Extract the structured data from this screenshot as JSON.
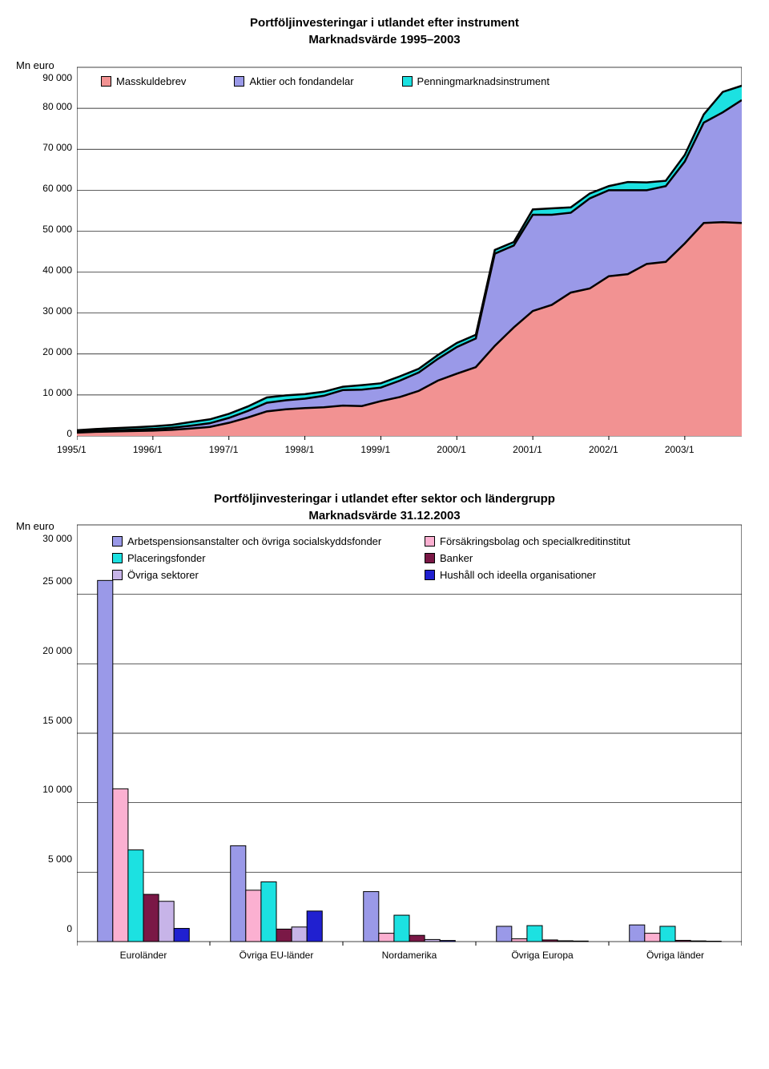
{
  "chart1": {
    "type": "area",
    "title_line1": "Portföljinvesteringar i utlandet  efter instrument",
    "title_line2": "Marknadsvärde 1995–2003",
    "y_axis_label": "Mn euro",
    "y_axis_fontsize": 13,
    "title_fontsize": 15,
    "ylim": [
      0,
      90000
    ],
    "ytick_step": 10000,
    "yticks": [
      "0",
      "10 000",
      "20 000",
      "30 000",
      "40 000",
      "50 000",
      "60 000",
      "70 000",
      "80 000",
      "90 000"
    ],
    "xticks": [
      "1995/1",
      "1996/1",
      "1997/1",
      "1998/1",
      "1999/1",
      "2000/1",
      "2001/1",
      "2002/1",
      "2003/1"
    ],
    "background_color": "#ffffff",
    "grid_color": "#000000",
    "series": [
      {
        "label": "Masskuldebrev",
        "color": "#f29292"
      },
      {
        "label": "Aktier och fondandelar",
        "color": "#9a99e8"
      },
      {
        "label": "Penningmarknadsinstrument",
        "color": "#1ce1e1"
      }
    ],
    "data": {
      "x": [
        0,
        1,
        2,
        3,
        4,
        5,
        6,
        7,
        8,
        9,
        10,
        11,
        12,
        13,
        14,
        15,
        16,
        17,
        18,
        19,
        20,
        21,
        22,
        23,
        24,
        25,
        26,
        27,
        28,
        29,
        30,
        31,
        32,
        33,
        34,
        35
      ],
      "masskuldebrev": [
        800,
        1000,
        1100,
        1200,
        1300,
        1500,
        1800,
        2200,
        3200,
        4500,
        6000,
        6500,
        6800,
        7000,
        7400,
        7300,
        8500,
        9500,
        11000,
        13500,
        15200,
        16800,
        22000,
        26500,
        30500,
        32000,
        35000,
        36000,
        39000,
        39500,
        42000,
        42500,
        47000,
        52000,
        52200,
        52000
      ],
      "aktier": [
        200,
        250,
        300,
        350,
        400,
        500,
        700,
        900,
        1200,
        1600,
        2100,
        2200,
        2300,
        2800,
        3800,
        4000,
        3300,
        4000,
        4500,
        5300,
        6500,
        7000,
        22500,
        20000,
        23500,
        22000,
        19500,
        22000,
        21000,
        20500,
        18000,
        18500,
        20000,
        24500,
        26800,
        30000
      ],
      "penning": [
        400,
        450,
        500,
        550,
        650,
        700,
        900,
        950,
        1000,
        1100,
        1300,
        1200,
        1100,
        1000,
        800,
        1100,
        1050,
        1050,
        900,
        950,
        1000,
        900,
        900,
        850,
        1300,
        1570,
        1300,
        1200,
        1000,
        2000,
        1900,
        1300,
        1600,
        2000,
        5000,
        3500
      ]
    },
    "stroke_width": 2.5
  },
  "chart2": {
    "type": "bar",
    "title_line1": "Portföljinvesteringar i utlandet efter sektor och ländergrupp",
    "title_line2": "Marknadsvärde 31.12.2003",
    "y_axis_label": "Mn euro",
    "ylim": [
      0,
      30000
    ],
    "ytick_step": 5000,
    "yticks": [
      "0",
      "5 000",
      "10 000",
      "15 000",
      "20 000",
      "25 000",
      "30 000"
    ],
    "categories": [
      "Euroländer",
      "Övriga EU-länder",
      "Nordamerika",
      "Övriga Europa",
      "Övriga länder"
    ],
    "series": [
      {
        "label": "Arbetspensionsanstalter och övriga socialskyddsfonder",
        "color": "#9a99e8"
      },
      {
        "label": "Försäkringsbolag och specialkreditinstitut",
        "color": "#fbb0d1"
      },
      {
        "label": "Placeringsfonder",
        "color": "#1ce1e1"
      },
      {
        "label": "Banker",
        "color": "#7a1846"
      },
      {
        "label": "Övriga sektorer",
        "color": "#c7b4e8"
      },
      {
        "label": "Hushåll och ideella organisationer",
        "color": "#2020d0"
      }
    ],
    "values": [
      [
        26000,
        11000,
        6600,
        3400,
        2900,
        950
      ],
      [
        6900,
        3700,
        4300,
        900,
        1050,
        2200
      ],
      [
        3600,
        600,
        1900,
        450,
        150,
        80
      ],
      [
        1100,
        200,
        1150,
        120,
        60,
        40
      ],
      [
        1200,
        600,
        1100,
        90,
        50,
        30
      ]
    ],
    "bar_width": 0.115,
    "background_color": "#ffffff",
    "grid_color": "#000000"
  }
}
